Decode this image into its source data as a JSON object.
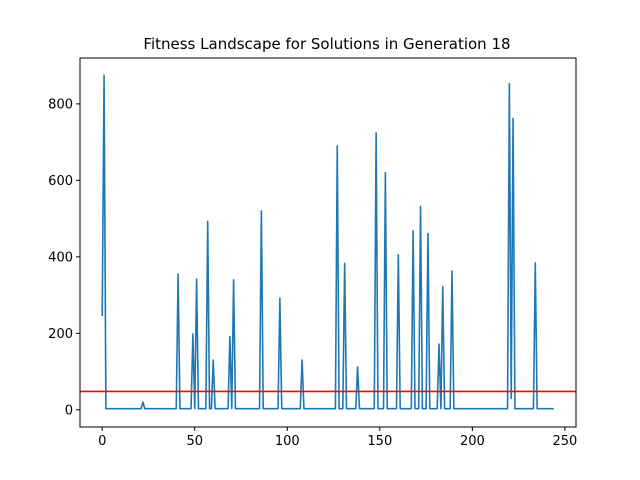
{
  "chart_data": {
    "type": "line",
    "title": "Fitness Landscape for Solutions in Generation 18",
    "xlabel": "",
    "ylabel": "",
    "xlim": [
      -12,
      256
    ],
    "ylim": [
      -45,
      920
    ],
    "xticks": [
      0,
      50,
      100,
      150,
      200,
      250
    ],
    "yticks": [
      0,
      200,
      400,
      600,
      800
    ],
    "grid": false,
    "series": [
      {
        "color": "#1f77b4",
        "points": [
          [
            0,
            245
          ],
          [
            1,
            875
          ],
          [
            2,
            3
          ],
          [
            21,
            3
          ],
          [
            22,
            20
          ],
          [
            23,
            3
          ],
          [
            40,
            3
          ],
          [
            41,
            355
          ],
          [
            42,
            3
          ],
          [
            48,
            3
          ],
          [
            49,
            198
          ],
          [
            50,
            3
          ],
          [
            51,
            342
          ],
          [
            52,
            3
          ],
          [
            56,
            3
          ],
          [
            57,
            493
          ],
          [
            58,
            3
          ],
          [
            59,
            3
          ],
          [
            60,
            130
          ],
          [
            61,
            3
          ],
          [
            68,
            3
          ],
          [
            69,
            192
          ],
          [
            70,
            3
          ],
          [
            71,
            340
          ],
          [
            72,
            3
          ],
          [
            85,
            3
          ],
          [
            86,
            520
          ],
          [
            87,
            3
          ],
          [
            95,
            3
          ],
          [
            96,
            292
          ],
          [
            97,
            3
          ],
          [
            107,
            3
          ],
          [
            108,
            130
          ],
          [
            109,
            3
          ],
          [
            126,
            3
          ],
          [
            127,
            690
          ],
          [
            128,
            3
          ],
          [
            130,
            3
          ],
          [
            131,
            383
          ],
          [
            132,
            3
          ],
          [
            137,
            3
          ],
          [
            138,
            112
          ],
          [
            139,
            3
          ],
          [
            147,
            3
          ],
          [
            148,
            724
          ],
          [
            149,
            3
          ],
          [
            152,
            3
          ],
          [
            153,
            620
          ],
          [
            154,
            3
          ],
          [
            159,
            3
          ],
          [
            160,
            405
          ],
          [
            161,
            3
          ],
          [
            167,
            3
          ],
          [
            168,
            468
          ],
          [
            169,
            3
          ],
          [
            171,
            3
          ],
          [
            172,
            532
          ],
          [
            173,
            3
          ],
          [
            175,
            3
          ],
          [
            176,
            461
          ],
          [
            177,
            3
          ],
          [
            181,
            3
          ],
          [
            182,
            172
          ],
          [
            183,
            3
          ],
          [
            184,
            322
          ],
          [
            185,
            3
          ],
          [
            188,
            3
          ],
          [
            189,
            363
          ],
          [
            190,
            3
          ],
          [
            219,
            3
          ],
          [
            220,
            853
          ],
          [
            221,
            30
          ],
          [
            222,
            762
          ],
          [
            223,
            3
          ],
          [
            233,
            3
          ],
          [
            234,
            384
          ],
          [
            235,
            3
          ],
          [
            244,
            3
          ]
        ]
      }
    ],
    "hline": {
      "y": 48,
      "color": "#ff0000"
    }
  }
}
